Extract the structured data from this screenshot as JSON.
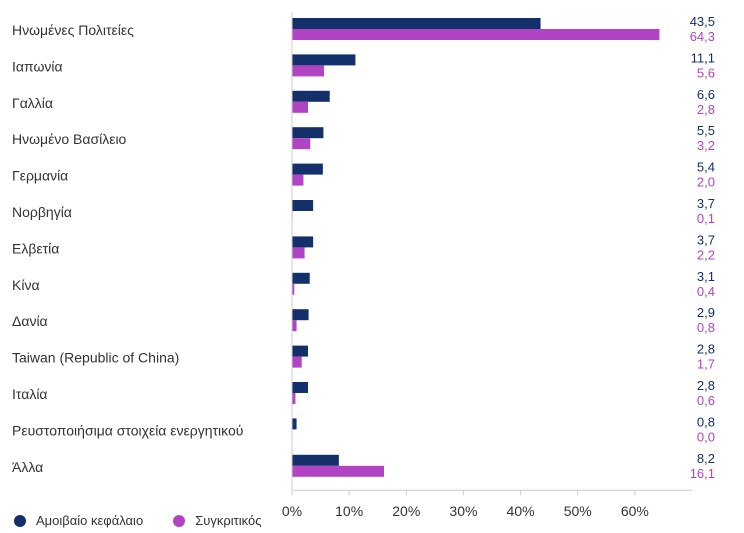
{
  "chart_data": {
    "type": "bar",
    "orientation": "horizontal",
    "categories": [
      "Ηνωμένες Πολιτείες",
      "Ιαπωνία",
      "Γαλλία",
      "Ηνωμένο Βασίλειο",
      "Γερμανία",
      "Νορβηγία",
      "Ελβετία",
      "Κίνα",
      "Δανία",
      "Taiwan (Republic of China)",
      "Ιταλία",
      "Ρευστοποιήσιμα στοιχεία ενεργητικού",
      "Άλλα"
    ],
    "series": [
      {
        "name": "Αμοιβαίο κεφάλαιο",
        "color": "#13306a",
        "values": [
          43.5,
          11.1,
          6.6,
          5.5,
          5.4,
          3.7,
          3.7,
          3.1,
          2.9,
          2.8,
          2.8,
          0.8,
          8.2
        ],
        "labels": [
          "43,5",
          "11,1",
          "6,6",
          "5,5",
          "5,4",
          "3,7",
          "3,7",
          "3,1",
          "2,9",
          "2,8",
          "2,8",
          "0,8",
          "8,2"
        ]
      },
      {
        "name": "Συγκριτικός",
        "color": "#b144c2",
        "values": [
          64.3,
          5.6,
          2.8,
          3.2,
          2.0,
          0.1,
          2.2,
          0.4,
          0.8,
          1.7,
          0.6,
          0.0,
          16.1
        ],
        "labels": [
          "64,3",
          "5,6",
          "2,8",
          "3,2",
          "2,0",
          "0,1",
          "2,2",
          "0,4",
          "0,8",
          "1,7",
          "0,6",
          "0,0",
          "16,1"
        ]
      }
    ],
    "xlim": [
      0,
      70
    ],
    "x_ticks": [
      0,
      10,
      20,
      30,
      40,
      50,
      60
    ],
    "x_tick_labels": [
      "0%",
      "10%",
      "20%",
      "30%",
      "40%",
      "50%",
      "60%"
    ],
    "grid": false,
    "legend_position": "bottom-left",
    "title": "",
    "xlabel": "",
    "ylabel": ""
  }
}
